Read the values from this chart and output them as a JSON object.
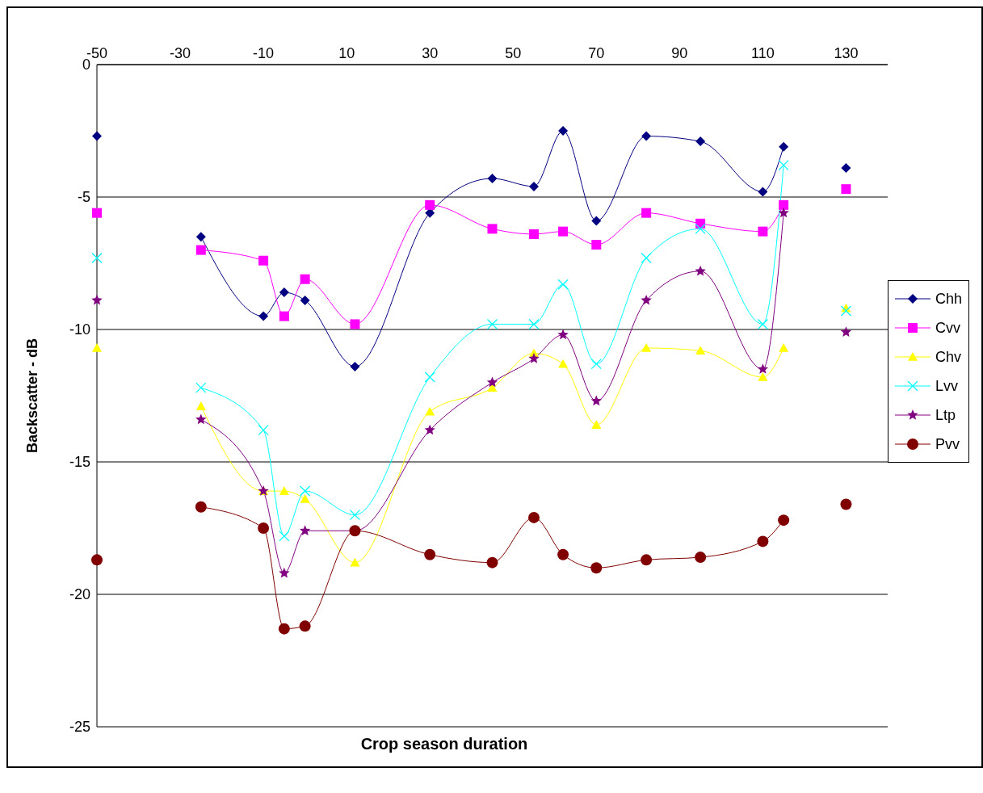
{
  "chart_data": {
    "type": "line",
    "xlabel": "Crop season duration",
    "ylabel": "Backscatter - dB",
    "x": [
      -50,
      -25,
      -10,
      -5,
      0,
      12,
      30,
      45,
      55,
      62,
      70,
      82,
      95,
      110,
      115,
      130
    ],
    "xlim": [
      -50,
      140
    ],
    "xticks": [
      -50,
      -30,
      -10,
      10,
      30,
      50,
      70,
      90,
      110,
      130
    ],
    "ylim": [
      -25,
      0
    ],
    "yticks": [
      0,
      -5,
      -10,
      -15,
      -20,
      -25
    ],
    "grid": "y",
    "legend": "right",
    "line_style": "solid",
    "series": [
      {
        "name": "Chh",
        "color": "#000080",
        "marker": "diamond",
        "values": [
          null,
          -6.5,
          -9.5,
          -8.6,
          -8.9,
          -11.4,
          -5.6,
          -4.3,
          -4.6,
          -2.5,
          -5.9,
          -2.7,
          -2.9,
          -4.8,
          -3.1,
          null
        ]
      },
      {
        "name": "Cvv",
        "color": "#ff00ff",
        "marker": "square",
        "values": [
          null,
          -7.0,
          -7.4,
          -9.5,
          -8.1,
          -9.8,
          -5.3,
          -6.2,
          -6.4,
          -6.3,
          -6.8,
          -5.6,
          -6.0,
          -6.3,
          -5.3,
          null
        ]
      },
      {
        "name": "Chv",
        "color": "#ffff00",
        "marker": "triangle",
        "values": [
          null,
          -12.9,
          -16.1,
          -16.1,
          -16.4,
          -18.8,
          -13.1,
          -12.2,
          -10.9,
          -11.3,
          -13.6,
          -10.7,
          -10.8,
          -11.8,
          -10.7,
          null
        ]
      },
      {
        "name": "Lvv",
        "color": "#00ffff",
        "marker": "cross",
        "values": [
          null,
          -12.2,
          -13.8,
          -17.8,
          -16.1,
          -17.0,
          -11.8,
          -9.8,
          -9.8,
          -8.3,
          -11.3,
          -7.3,
          -6.2,
          -9.8,
          -3.8,
          null
        ]
      },
      {
        "name": "Ltp",
        "color": "#800080",
        "marker": "star",
        "values": [
          null,
          -13.4,
          -16.1,
          -19.2,
          -17.6,
          -17.6,
          -13.8,
          -12.0,
          -11.1,
          -10.2,
          -12.7,
          -8.9,
          -7.8,
          -11.5,
          -5.6,
          null
        ]
      },
      {
        "name": "Pvv",
        "color": "#800000",
        "marker": "circle",
        "values": [
          null,
          -16.7,
          -17.5,
          -21.3,
          -21.2,
          -17.6,
          -18.5,
          -18.8,
          -17.1,
          -18.5,
          -19.0,
          -18.7,
          -18.6,
          -18.0,
          -17.2,
          null
        ]
      },
      {
        "type": "scatter",
        "color": "#000080",
        "marker": "diamond",
        "values": [
          -2.7,
          null,
          null,
          null,
          null,
          null,
          null,
          null,
          null,
          null,
          null,
          null,
          null,
          null,
          null,
          -3.9
        ]
      },
      {
        "type": "scatter",
        "color": "#ff00ff",
        "marker": "square",
        "values": [
          -5.6,
          null,
          null,
          null,
          null,
          null,
          null,
          null,
          null,
          null,
          null,
          null,
          null,
          null,
          null,
          -4.7
        ]
      },
      {
        "type": "scatter",
        "color": "#ffff00",
        "marker": "triangle",
        "values": [
          -10.7,
          null,
          null,
          null,
          null,
          null,
          null,
          null,
          null,
          null,
          null,
          null,
          null,
          null,
          null,
          -9.2
        ]
      },
      {
        "type": "scatter",
        "color": "#00ffff",
        "marker": "cross",
        "values": [
          -7.3,
          null,
          null,
          null,
          null,
          null,
          null,
          null,
          null,
          null,
          null,
          null,
          null,
          null,
          null,
          -9.3
        ]
      },
      {
        "type": "scatter",
        "color": "#800080",
        "marker": "star",
        "values": [
          -8.9,
          null,
          null,
          null,
          null,
          null,
          null,
          null,
          null,
          null,
          null,
          null,
          null,
          null,
          null,
          -10.1
        ]
      },
      {
        "type": "scatter",
        "color": "#800000",
        "marker": "circle",
        "values": [
          -18.7,
          null,
          null,
          null,
          null,
          null,
          null,
          null,
          null,
          null,
          null,
          null,
          null,
          null,
          null,
          -16.6
        ]
      }
    ]
  }
}
